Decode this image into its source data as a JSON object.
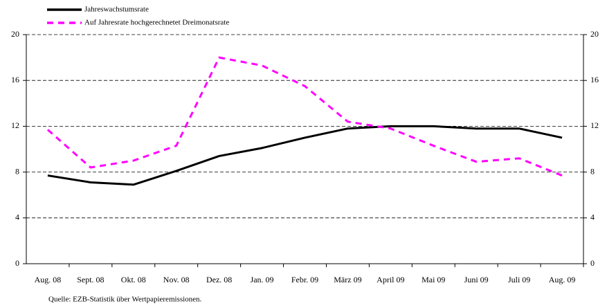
{
  "chart_data": {
    "type": "line",
    "categories": [
      "Aug. 08",
      "Sept. 08",
      "Okt. 08",
      "Nov. 08",
      "Dez. 08",
      "Jan. 09",
      "Febr. 09",
      "März 09",
      "April 09",
      "Mai 09",
      "Juni 09",
      "Juli 09",
      "Aug. 09"
    ],
    "series": [
      {
        "name": "Jahreswachstumsrate",
        "color": "#000000",
        "dash": false,
        "values": [
          7.7,
          7.1,
          6.9,
          8.1,
          9.4,
          10.1,
          11.0,
          11.8,
          12.0,
          12.0,
          11.8,
          11.8,
          11.0
        ]
      },
      {
        "name": "Auf Jahresrate hochgerechnetet Dreimonatsrate",
        "color": "#ff00ff",
        "dash": true,
        "values": [
          11.7,
          8.4,
          9.0,
          10.3,
          18.0,
          17.3,
          15.5,
          12.4,
          11.8,
          10.3,
          8.9,
          9.2,
          7.7
        ]
      }
    ],
    "ylim": [
      0,
      20
    ],
    "yticks": [
      0,
      4,
      8,
      12,
      16,
      20
    ],
    "y2lim": [
      0,
      20
    ],
    "y2ticks": [
      0,
      4,
      8,
      12,
      16,
      20
    ],
    "grid": true,
    "source": "Quelle: EZB-Statistik über Wertpapieremissionen."
  }
}
